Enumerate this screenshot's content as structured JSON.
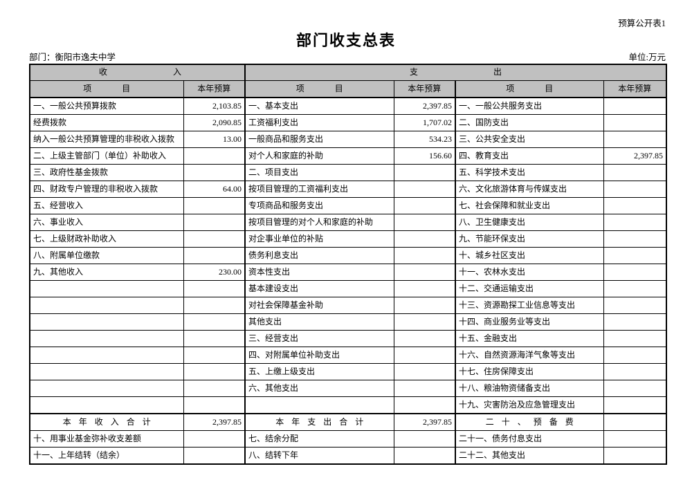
{
  "page": {
    "sheet_label": "预算公开表1",
    "title": "部门收支总表",
    "department": "部门：衡阳市逸夫中学",
    "unit": "单位:万元"
  },
  "table": {
    "income_header": "收入",
    "expenditure_header": "支出",
    "column_headers": {
      "item": "项目",
      "budget": "本年预算"
    },
    "rows": [
      {
        "c": [
          "一、一般公共预算拨款",
          "2,103.85",
          "一、基本支出",
          "2,397.85",
          "一、一般公共服务支出",
          ""
        ]
      },
      {
        "c": [
          "经费拨款",
          "2,090.85",
          "工资福利支出",
          "1,707.02",
          "二、国防支出",
          ""
        ],
        "ind": 1
      },
      {
        "c": [
          "纳入一般公共预算管理的非税收入拨款",
          "13.00",
          "一般商品和服务支出",
          "534.23",
          "三、公共安全支出",
          ""
        ],
        "ind": 2
      },
      {
        "c": [
          "二、上级主管部门（单位）补助收入",
          "",
          "对个人和家庭的补助",
          "156.60",
          "四、教育支出",
          "2,397.85"
        ]
      },
      {
        "c": [
          "三、政府性基金拨款",
          "",
          "二、项目支出",
          "",
          "五、科学技术支出",
          ""
        ]
      },
      {
        "c": [
          "四、财政专户管理的非税收入拨款",
          "64.00",
          "按项目管理的工资福利支出",
          "",
          "六、文化旅游体育与传媒支出",
          ""
        ]
      },
      {
        "c": [
          "五、经营收入",
          "",
          "专项商品和服务支出",
          "",
          "七、社会保障和就业支出",
          ""
        ]
      },
      {
        "c": [
          "六、事业收入",
          "",
          "按项目管理的对个人和家庭的补助",
          "",
          "八、卫生健康支出",
          ""
        ]
      },
      {
        "c": [
          "七、上级财政补助收入",
          "",
          "对企事业单位的补贴",
          "",
          "九、节能环保支出",
          ""
        ]
      },
      {
        "c": [
          "八、附属单位缴款",
          "",
          "债务利息支出",
          "",
          "十、城乡社区支出",
          ""
        ]
      },
      {
        "c": [
          "九、其他收入",
          "230.00",
          "资本性支出",
          "",
          "十一、农林水支出",
          ""
        ]
      },
      {
        "c": [
          "",
          "",
          "基本建设支出",
          "",
          "十二、交通运输支出",
          ""
        ]
      },
      {
        "c": [
          "",
          "",
          "对社会保障基金补助",
          "",
          "十三、资源勘探工业信息等支出",
          ""
        ]
      },
      {
        "c": [
          "",
          "",
          "其他支出",
          "",
          "十四、商业服务业等支出",
          ""
        ]
      },
      {
        "c": [
          "",
          "",
          "三、经营支出",
          "",
          "十五、金融支出",
          ""
        ]
      },
      {
        "c": [
          "",
          "",
          "四、对附属单位补助支出",
          "",
          "十六、自然资源海洋气象等支出",
          ""
        ]
      },
      {
        "c": [
          "",
          "",
          "五、上缴上级支出",
          "",
          "十七、住房保障支出",
          ""
        ]
      },
      {
        "c": [
          "",
          "",
          "六、其他支出",
          "",
          "十八、粮油物资储备支出",
          ""
        ]
      },
      {
        "c": [
          "",
          "",
          "",
          "",
          "十九、灾害防治及应急管理支出",
          ""
        ]
      },
      {
        "c": [
          "本年收入合计",
          "2,397.85",
          "本年支出合计",
          "2,397.85",
          "二十、预备费",
          ""
        ],
        "sum": true
      },
      {
        "c": [
          "十、用事业基金弥补收支差额",
          "",
          "七、结余分配",
          "",
          "二十一、债务付息支出",
          ""
        ]
      },
      {
        "c": [
          "十一、上年结转（结余）",
          "",
          "八、结转下年",
          "",
          "二十二、其他支出",
          ""
        ]
      }
    ]
  }
}
